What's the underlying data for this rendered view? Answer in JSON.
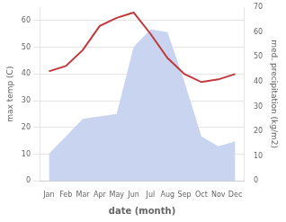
{
  "chart_data": {
    "type": "line",
    "xlabel": "date (month)",
    "ylabel": "max temp (C)",
    "y2label": "med. precipitation (kg/m2)",
    "categories": [
      "Jan",
      "Feb",
      "Mar",
      "Apr",
      "May",
      "Jun",
      "Jul",
      "Aug",
      "Sep",
      "Oct",
      "Nov",
      "Dec"
    ],
    "series": [
      {
        "type": "area",
        "color": "#c8d4f0",
        "axis": "y2",
        "values": [
          11,
          18,
          25,
          26,
          27,
          54,
          61,
          60,
          40,
          18,
          14,
          16
        ]
      },
      {
        "type": "line",
        "color": "#c0393b",
        "values": [
          41,
          43,
          49,
          58,
          61,
          63,
          55,
          46,
          40,
          37,
          38,
          40
        ]
      }
    ],
    "ylim": [
      0,
      65
    ],
    "yticks": [
      0,
      10,
      20,
      30,
      40,
      50,
      60
    ],
    "y2lim": [
      0,
      70
    ],
    "y2ticks": [
      0,
      10,
      20,
      30,
      40,
      50,
      60,
      70
    ],
    "grid": true
  }
}
